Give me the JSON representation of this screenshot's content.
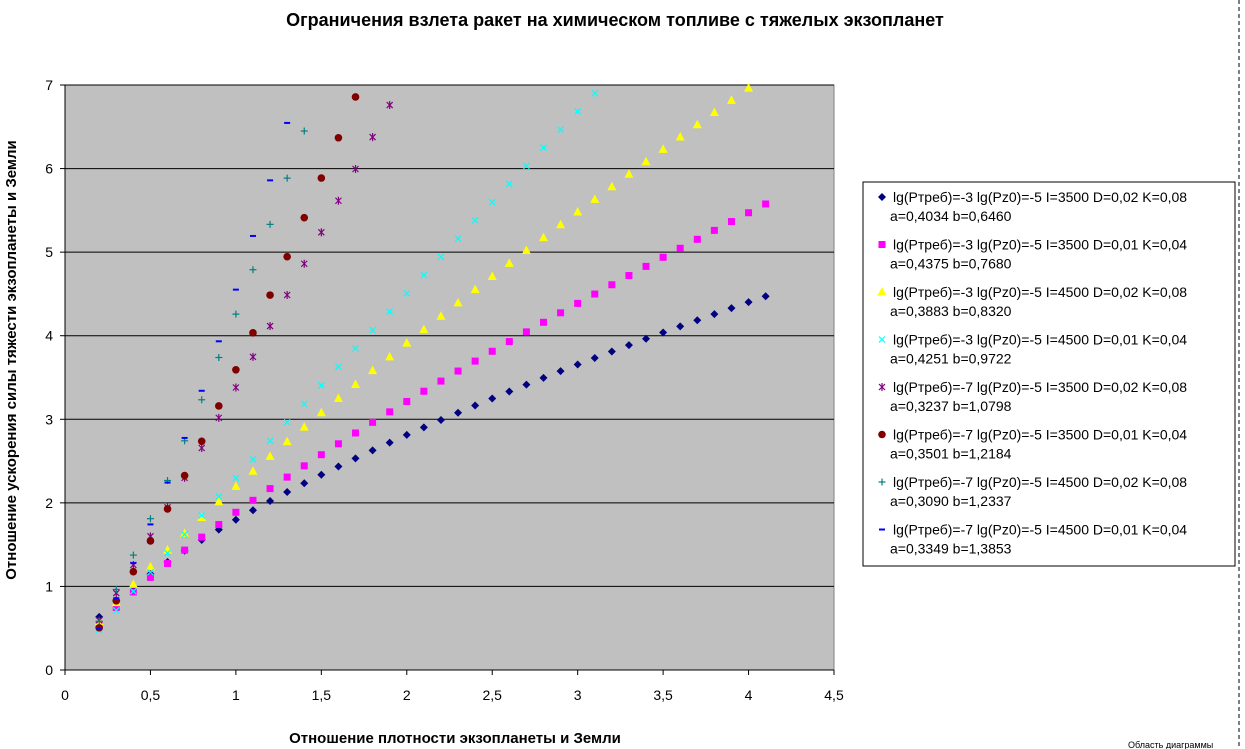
{
  "chart_data": {
    "type": "scatter",
    "title": "Ограничения взлета ракет на химическом топливе с тяжелых экзопланет",
    "xlabel": "Отношение плотности экзопланеты и Земли",
    "ylabel": "Отношение ускорения силы тяжести экзопланеты и Земли",
    "xlim": [
      0,
      4.5
    ],
    "ylim": [
      0,
      7
    ],
    "x_ticks": [
      "0",
      "0,5",
      "1",
      "1,5",
      "2",
      "2,5",
      "3",
      "3,5",
      "4",
      "4,5"
    ],
    "y_ticks": [
      "0",
      "1",
      "2",
      "3",
      "4",
      "5",
      "6",
      "7"
    ],
    "grid": "horizontal",
    "background": "#c0c0c0",
    "legend_position": "right",
    "x_start": 0.2,
    "x_step": 0.1,
    "x_end": 4.1,
    "series": [
      {
        "line1": "lg(Ртреб)=-3 lg(Pz0)=-5 I=3500 D=0,02 K=0,08",
        "line2": "a=0,4034 b=0,6460",
        "a": 0.4034,
        "b": 0.646,
        "marker": "diamond",
        "color": "#000080"
      },
      {
        "line1": "lg(Ртреб)=-3 lg(Pz0)=-5 I=3500 D=0,01 K=0,04",
        "line2": "a=0,4375 b=0,7680",
        "a": 0.4375,
        "b": 0.768,
        "marker": "square",
        "color": "#ff00ff"
      },
      {
        "line1": "lg(Ртреб)=-3 lg(Pz0)=-5 I=4500 D=0,02 K=0,08",
        "line2": "a=0,3883 b=0,8320",
        "a": 0.3883,
        "b": 0.832,
        "marker": "triangle",
        "color": "#ffff00"
      },
      {
        "line1": "lg(Ртреб)=-3 lg(Pz0)=-5 I=4500 D=0,01 K=0,04",
        "line2": "a=0,4251 b=0,9722",
        "a": 0.4251,
        "b": 0.9722,
        "marker": "x",
        "color": "#00ffff"
      },
      {
        "line1": "lg(Ртреб)=-7 lg(Pz0)=-5 I=3500 D=0,02 K=0,08",
        "line2": "a=0,3237 b=1,0798",
        "a": 0.3237,
        "b": 1.0798,
        "marker": "star",
        "color": "#800080"
      },
      {
        "line1": "lg(Ртреб)=-7 lg(Pz0)=-5 I=3500 D=0,01 K=0,04",
        "line2": "a=0,3501 b=1,2184",
        "a": 0.3501,
        "b": 1.2184,
        "marker": "circle",
        "color": "#800000"
      },
      {
        "line1": "lg(Ртреб)=-7 lg(Pz0)=-5 I=4500 D=0,02 K=0,08",
        "line2": "a=0,3090 b=1,2337",
        "a": 0.309,
        "b": 1.2337,
        "marker": "plus",
        "color": "#008080"
      },
      {
        "line1": "lg(Ртреб)=-7 lg(Pz0)=-5 I=4500 D=0,01 K=0,04",
        "line2": "a=0,3349 b=1,3853",
        "a": 0.3349,
        "b": 1.3853,
        "marker": "dash",
        "color": "#0000ff"
      }
    ]
  },
  "corner_label": "Область диаграммы"
}
